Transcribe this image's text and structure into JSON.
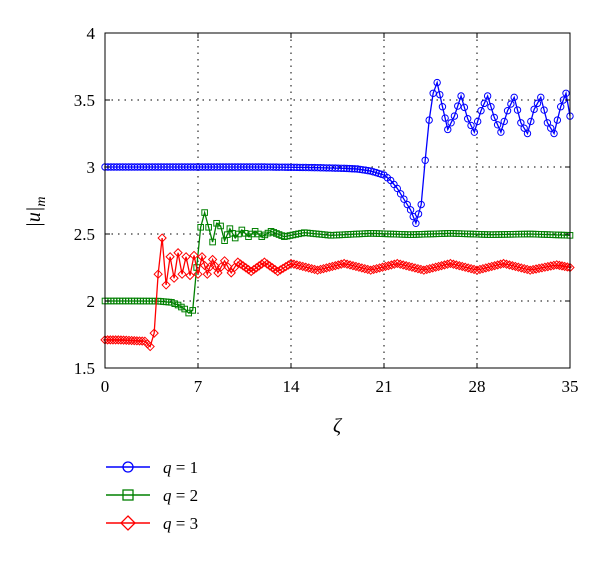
{
  "chart_data": {
    "type": "line",
    "title": "",
    "xlabel": "ζ",
    "ylabel": "|u|",
    "ylabel_subscript": "m",
    "xlim": [
      0,
      35
    ],
    "ylim": [
      1.5,
      4
    ],
    "x_ticks": [
      0,
      7,
      14,
      21,
      28,
      35
    ],
    "y_ticks": [
      1.5,
      2,
      2.5,
      3,
      3.5,
      4
    ],
    "x_tick_labels": [
      "0",
      "7",
      "14",
      "21",
      "28",
      "35"
    ],
    "y_tick_labels": [
      "1.5",
      "2",
      "2.5",
      "3",
      "3.5",
      "4"
    ],
    "grid": true,
    "legend_position": "below",
    "series": [
      {
        "name": "q = 1",
        "color": "#0000ff",
        "marker": "circle",
        "points": [
          [
            0,
            3.0
          ],
          [
            2,
            3.0
          ],
          [
            4,
            3.0
          ],
          [
            6,
            3.0
          ],
          [
            8,
            3.0
          ],
          [
            10,
            3.0
          ],
          [
            12,
            3.0
          ],
          [
            14,
            2.998
          ],
          [
            16,
            2.995
          ],
          [
            18,
            2.99
          ],
          [
            19,
            2.985
          ],
          [
            20,
            2.97
          ],
          [
            21,
            2.94
          ],
          [
            21.5,
            2.9
          ],
          [
            22,
            2.84
          ],
          [
            22.5,
            2.76
          ],
          [
            23,
            2.68
          ],
          [
            23.4,
            2.58
          ],
          [
            23.8,
            2.72
          ],
          [
            24.1,
            3.05
          ],
          [
            24.4,
            3.35
          ],
          [
            24.7,
            3.55
          ],
          [
            25.0,
            3.63
          ],
          [
            25.4,
            3.45
          ],
          [
            25.8,
            3.28
          ],
          [
            26.3,
            3.38
          ],
          [
            26.8,
            3.53
          ],
          [
            27.3,
            3.36
          ],
          [
            27.8,
            3.26
          ],
          [
            28.3,
            3.42
          ],
          [
            28.8,
            3.53
          ],
          [
            29.3,
            3.37
          ],
          [
            29.8,
            3.26
          ],
          [
            30.3,
            3.42
          ],
          [
            30.8,
            3.52
          ],
          [
            31.3,
            3.33
          ],
          [
            31.8,
            3.25
          ],
          [
            32.3,
            3.43
          ],
          [
            32.8,
            3.52
          ],
          [
            33.3,
            3.33
          ],
          [
            33.8,
            3.25
          ],
          [
            34.3,
            3.45
          ],
          [
            34.7,
            3.55
          ],
          [
            35,
            3.38
          ]
        ]
      },
      {
        "name": "q = 2",
        "color": "#008000",
        "marker": "square",
        "points": [
          [
            0,
            2.0
          ],
          [
            2,
            2.0
          ],
          [
            4,
            1.999
          ],
          [
            5,
            1.99
          ],
          [
            5.5,
            1.97
          ],
          [
            6,
            1.94
          ],
          [
            6.3,
            1.91
          ],
          [
            6.6,
            1.93
          ],
          [
            6.9,
            2.25
          ],
          [
            7.2,
            2.55
          ],
          [
            7.5,
            2.66
          ],
          [
            7.8,
            2.55
          ],
          [
            8.1,
            2.44
          ],
          [
            8.4,
            2.58
          ],
          [
            8.7,
            2.56
          ],
          [
            9.0,
            2.45
          ],
          [
            9.4,
            2.54
          ],
          [
            9.8,
            2.47
          ],
          [
            10.3,
            2.53
          ],
          [
            10.8,
            2.48
          ],
          [
            11.3,
            2.52
          ],
          [
            11.8,
            2.48
          ],
          [
            12.5,
            2.52
          ],
          [
            13.5,
            2.48
          ],
          [
            15,
            2.51
          ],
          [
            17,
            2.49
          ],
          [
            20,
            2.505
          ],
          [
            23,
            2.495
          ],
          [
            26,
            2.505
          ],
          [
            29,
            2.495
          ],
          [
            32,
            2.5
          ],
          [
            35,
            2.49
          ]
        ]
      },
      {
        "name": "q = 3",
        "color": "#ff0000",
        "marker": "diamond",
        "points": [
          [
            0,
            1.71
          ],
          [
            1,
            1.71
          ],
          [
            2,
            1.705
          ],
          [
            3,
            1.7
          ],
          [
            3.4,
            1.66
          ],
          [
            3.7,
            1.76
          ],
          [
            4.0,
            2.2
          ],
          [
            4.3,
            2.47
          ],
          [
            4.6,
            2.12
          ],
          [
            4.9,
            2.33
          ],
          [
            5.2,
            2.17
          ],
          [
            5.5,
            2.36
          ],
          [
            5.8,
            2.2
          ],
          [
            6.1,
            2.33
          ],
          [
            6.4,
            2.19
          ],
          [
            6.7,
            2.34
          ],
          [
            7.0,
            2.2
          ],
          [
            7.3,
            2.33
          ],
          [
            7.7,
            2.2
          ],
          [
            8.1,
            2.31
          ],
          [
            8.5,
            2.21
          ],
          [
            9.0,
            2.3
          ],
          [
            9.5,
            2.21
          ],
          [
            10,
            2.29
          ],
          [
            11,
            2.22
          ],
          [
            12,
            2.29
          ],
          [
            13,
            2.22
          ],
          [
            14,
            2.28
          ],
          [
            16,
            2.23
          ],
          [
            18,
            2.28
          ],
          [
            20,
            2.23
          ],
          [
            22,
            2.28
          ],
          [
            24,
            2.23
          ],
          [
            26,
            2.28
          ],
          [
            28,
            2.23
          ],
          [
            30,
            2.28
          ],
          [
            32,
            2.23
          ],
          [
            34,
            2.27
          ],
          [
            35,
            2.25
          ]
        ]
      }
    ]
  },
  "legend": {
    "items": [
      {
        "q": "q",
        "eq": " = 1"
      },
      {
        "q": "q",
        "eq": " = 2"
      },
      {
        "q": "q",
        "eq": " = 3"
      }
    ]
  }
}
